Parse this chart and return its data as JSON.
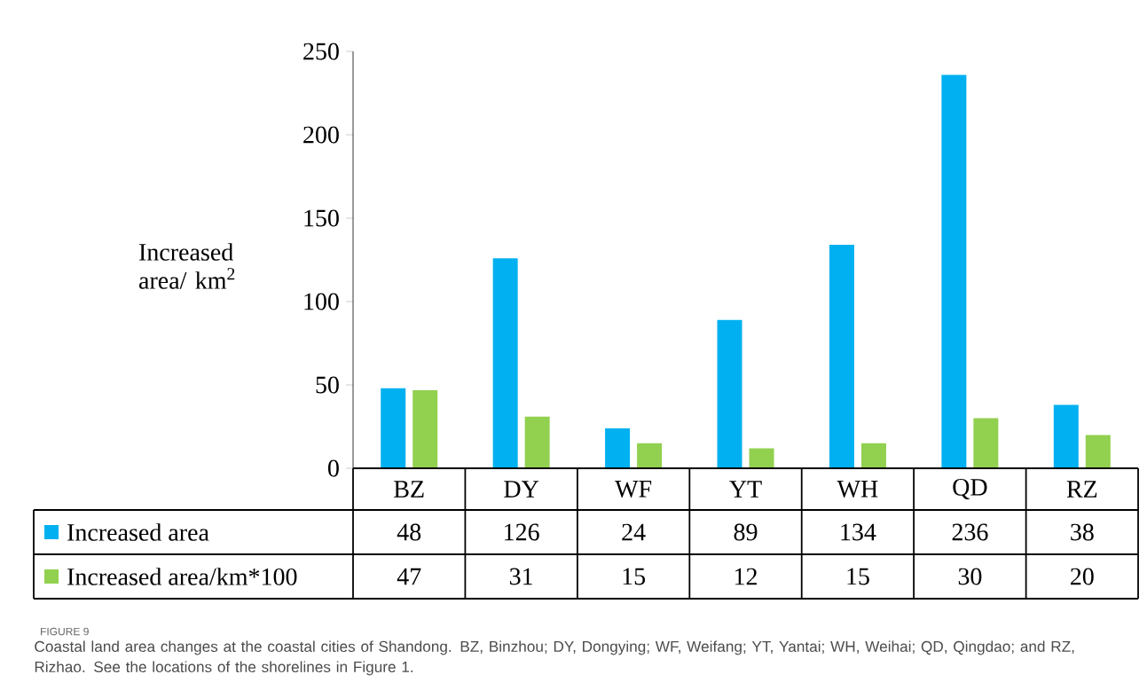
{
  "chart_data": {
    "type": "bar",
    "categories": [
      "BZ",
      "DY",
      "WF",
      "YT",
      "WH",
      "QD",
      "RZ"
    ],
    "series": [
      {
        "name": "Increased area",
        "color": "#00b0f0",
        "values": [
          48,
          126,
          24,
          89,
          134,
          236,
          38
        ]
      },
      {
        "name": "Increased area/km*100",
        "color": "#92d050",
        "values": [
          47,
          31,
          15,
          12,
          15,
          30,
          20
        ]
      }
    ],
    "ylabel": "Increased area/ km$^{2}$",
    "ylim": [
      0,
      250
    ],
    "yticks": [
      0,
      50,
      100,
      150,
      200,
      250
    ],
    "data_labels": true,
    "legend": "bottom",
    "annotations": [
      "FIGURE 9",
      "Coastal land area changes at the coastal cities of Shandong. BZ, Binzhou; DY, Dongying; WF, Weifang; YT, Yantai; WH, Weihai; QD, Qingdao; and RZ, Rizhao. See the locations of the shorelines in Figure 1."
    ]
  }
}
